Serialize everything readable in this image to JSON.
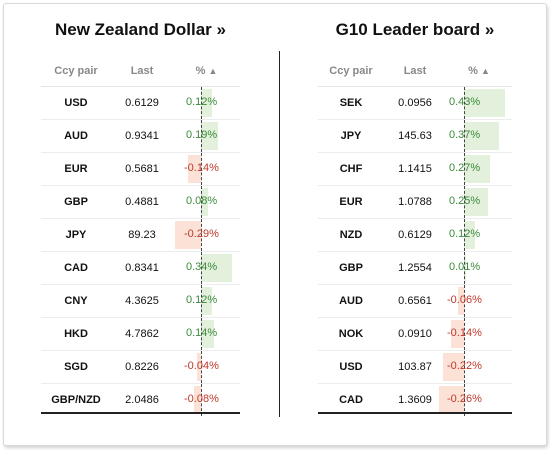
{
  "colors": {
    "positive_text": "#3a8a3a",
    "negative_text": "#c0392b",
    "positive_bar": "#e3f0dc",
    "negative_bar": "#fbe1d6"
  },
  "left": {
    "title": "New Zealand Dollar",
    "title_suffix": "»",
    "headers": {
      "pair": "Ccy pair",
      "last": "Last",
      "pct": "%",
      "sort_icon": "▲"
    },
    "rows": [
      {
        "pair": "USD",
        "last": "0.6129",
        "pct_label": "0.12%",
        "pct": 0.12
      },
      {
        "pair": "AUD",
        "last": "0.9341",
        "pct_label": "0.19%",
        "pct": 0.19
      },
      {
        "pair": "EUR",
        "last": "0.5681",
        "pct_label": "-0.14%",
        "pct": -0.14
      },
      {
        "pair": "GBP",
        "last": "0.4881",
        "pct_label": "0.08%",
        "pct": 0.08
      },
      {
        "pair": "JPY",
        "last": "89.23",
        "pct_label": "-0.29%",
        "pct": -0.29
      },
      {
        "pair": "CAD",
        "last": "0.8341",
        "pct_label": "0.34%",
        "pct": 0.34
      },
      {
        "pair": "CNY",
        "last": "4.3625",
        "pct_label": "0.12%",
        "pct": 0.12
      },
      {
        "pair": "HKD",
        "last": "4.7862",
        "pct_label": "0.14%",
        "pct": 0.14
      },
      {
        "pair": "SGD",
        "last": "0.8226",
        "pct_label": "-0.04%",
        "pct": -0.04
      },
      {
        "pair": "GBP/NZD",
        "last": "2.0486",
        "pct_label": "-0.08%",
        "pct": -0.08
      }
    ]
  },
  "right": {
    "title": "G10 Leader board",
    "title_suffix": "»",
    "headers": {
      "pair": "Ccy pair",
      "last": "Last",
      "pct": "%",
      "sort_icon": "▲"
    },
    "rows": [
      {
        "pair": "SEK",
        "last": "0.0956",
        "pct_label": "0.43%",
        "pct": 0.43
      },
      {
        "pair": "JPY",
        "last": "145.63",
        "pct_label": "0.37%",
        "pct": 0.37
      },
      {
        "pair": "CHF",
        "last": "1.1415",
        "pct_label": "0.27%",
        "pct": 0.27
      },
      {
        "pair": "EUR",
        "last": "1.0788",
        "pct_label": "0.25%",
        "pct": 0.25
      },
      {
        "pair": "NZD",
        "last": "0.6129",
        "pct_label": "0.12%",
        "pct": 0.12
      },
      {
        "pair": "GBP",
        "last": "1.2554",
        "pct_label": "0.01%",
        "pct": 0.01
      },
      {
        "pair": "AUD",
        "last": "0.6561",
        "pct_label": "-0.06%",
        "pct": -0.06
      },
      {
        "pair": "NOK",
        "last": "0.0910",
        "pct_label": "-0.14%",
        "pct": -0.14
      },
      {
        "pair": "USD",
        "last": "103.87",
        "pct_label": "-0.22%",
        "pct": -0.22
      },
      {
        "pair": "CAD",
        "last": "1.3609",
        "pct_label": "-0.26%",
        "pct": -0.26
      }
    ]
  }
}
